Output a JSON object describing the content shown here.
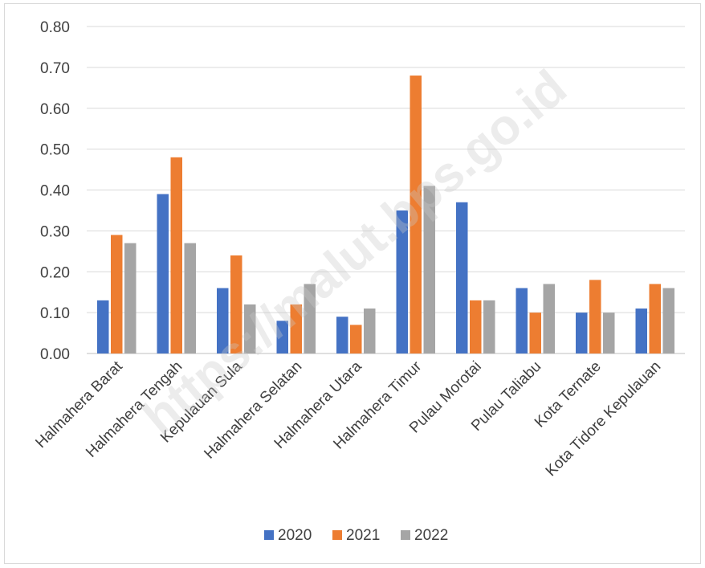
{
  "watermark": "https://malut.bps.go.id",
  "chart_data": {
    "type": "bar",
    "title": "",
    "xlabel": "",
    "ylabel": "",
    "ylim": [
      0,
      0.8
    ],
    "yticks": [
      "0.00",
      "0.10",
      "0.20",
      "0.30",
      "0.40",
      "0.50",
      "0.60",
      "0.70",
      "0.80"
    ],
    "grid": true,
    "legend_position": "bottom",
    "categories": [
      "Halmahera Barat",
      "Halmahera Tengah",
      "Kepulauan Sula",
      "Halmahera Selatan",
      "Halmahera Utara",
      "Halmahera Timur",
      "Pulau Morotai",
      "Pulau Taliabu",
      "Kota Ternate",
      "Kota Tidore Kepulauan"
    ],
    "series": [
      {
        "name": "2020",
        "color": "#4472c4",
        "values": [
          0.13,
          0.39,
          0.16,
          0.08,
          0.09,
          0.35,
          0.37,
          0.16,
          0.1,
          0.11
        ]
      },
      {
        "name": "2021",
        "color": "#ed7d31",
        "values": [
          0.29,
          0.48,
          0.24,
          0.12,
          0.07,
          0.68,
          0.13,
          0.1,
          0.18,
          0.17
        ]
      },
      {
        "name": "2022",
        "color": "#a5a5a5",
        "values": [
          0.27,
          0.27,
          0.12,
          0.17,
          0.11,
          0.41,
          0.13,
          0.17,
          0.1,
          0.16
        ]
      }
    ]
  }
}
